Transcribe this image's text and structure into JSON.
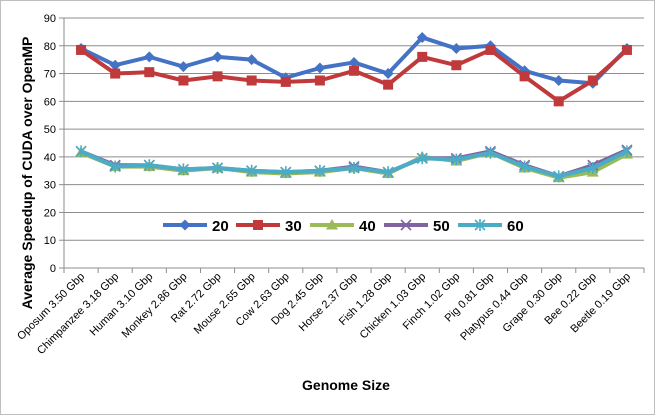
{
  "chart_data": {
    "type": "line",
    "title": "",
    "xlabel": "Genome Size",
    "ylabel": "Average Speedup of CUDA over OpenMP",
    "ylim": [
      0,
      90
    ],
    "yticks": [
      0,
      10,
      20,
      30,
      40,
      50,
      60,
      70,
      80,
      90
    ],
    "grid": "horizontal major gridlines",
    "legend_position": "inside-center",
    "categories": [
      "Oposum 3.50 Gbp",
      "Chimpanzee 3.18 Gbp",
      "Human 3.10 Gbp",
      "Monkey 2.86 Gbp",
      "Rat 2.72 Gbp",
      "Mouse 2.65 Gbp",
      "Cow 2.63 Gbp",
      "Dog 2.45 Gbp",
      "Horse 2.37 Gbp",
      "Fish 1.28 Gbp",
      "Chicken 1.03 Gbp",
      "Finch 1.02 Gbp",
      "Pig 0.81 Gbp",
      "Platypus 0.44 Gbp",
      "Grape 0.30 Gbp",
      "Bee 0.22 Gbp",
      "Beetle 0.19 Gbp"
    ],
    "series": [
      {
        "name": "20",
        "color": "#4472C4",
        "marker": "diamond",
        "values": [
          79,
          73,
          76,
          72.5,
          76,
          75,
          68.5,
          72,
          74,
          70,
          83,
          79,
          80,
          71,
          67.5,
          66.5,
          79
        ]
      },
      {
        "name": "30",
        "color": "#C0393B",
        "marker": "square",
        "values": [
          78.5,
          70,
          70.5,
          67.5,
          69,
          67.5,
          67,
          67.5,
          71,
          66,
          76,
          73,
          78.5,
          69,
          60,
          67.5,
          78.5
        ]
      },
      {
        "name": "40",
        "color": "#9BBB59",
        "marker": "triangle",
        "values": [
          41.5,
          36.5,
          36.5,
          35,
          36,
          34.5,
          34,
          34.5,
          36,
          34,
          40,
          38.5,
          41.5,
          36,
          32.5,
          34.5,
          41
        ]
      },
      {
        "name": "50",
        "color": "#8064A2",
        "marker": "x",
        "values": [
          42,
          37,
          37,
          35.5,
          36,
          35,
          34.5,
          35,
          36.5,
          34.5,
          39.5,
          39.5,
          42,
          37,
          33,
          37,
          42.5
        ]
      },
      {
        "name": "60",
        "color": "#4BACC6",
        "marker": "asterisk",
        "values": [
          42,
          36.5,
          37,
          35.5,
          36,
          35,
          34.5,
          35,
          36,
          34.5,
          39.5,
          39,
          41.5,
          36.5,
          33,
          36,
          42
        ]
      }
    ]
  }
}
